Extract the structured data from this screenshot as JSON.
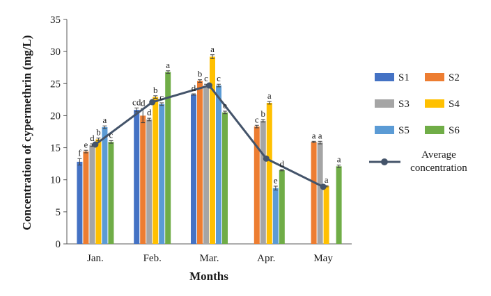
{
  "chart_data": {
    "type": "bar",
    "title": "",
    "xlabel": "Months",
    "ylabel": "Concentration of cypermethrin (mg/L)",
    "ylim": [
      0,
      35
    ],
    "yticks": [
      0,
      5,
      10,
      15,
      20,
      25,
      30,
      35
    ],
    "grid": false,
    "legend_position": "right",
    "categories": [
      "Jan.",
      "Feb.",
      "Mar.",
      "Apr.",
      "May"
    ],
    "series": [
      {
        "name": "S1",
        "color": "#4472c4",
        "values": [
          12.8,
          20.9,
          23.3,
          null,
          null
        ],
        "errors": [
          0.5,
          0.3,
          0.1,
          null,
          null
        ],
        "letters": [
          "f",
          "cd",
          "d",
          "",
          ""
        ]
      },
      {
        "name": "S2",
        "color": "#ed7d31",
        "values": [
          14.4,
          20.0,
          25.4,
          18.3,
          15.9
        ],
        "errors": [
          0.2,
          1.1,
          0.2,
          0.2,
          0.1
        ],
        "letters": [
          "e",
          "d",
          "b",
          "c",
          "a"
        ]
      },
      {
        "name": "S3",
        "color": "#a5a5a5",
        "values": [
          15.4,
          19.4,
          24.7,
          19.2,
          15.8
        ],
        "errors": [
          0.2,
          0.2,
          0.2,
          0.2,
          0.2
        ],
        "letters": [
          "d",
          "d",
          "c",
          "b",
          "a"
        ]
      },
      {
        "name": "S4",
        "color": "#ffc000",
        "values": [
          16.3,
          22.9,
          29.2,
          22.0,
          9.0
        ],
        "errors": [
          0.2,
          0.2,
          0.3,
          0.2,
          0.1
        ],
        "letters": [
          "b",
          "b",
          "a",
          "a",
          "a"
        ]
      },
      {
        "name": "S5",
        "color": "#5b9bd5",
        "values": [
          18.2,
          21.8,
          24.7,
          8.7,
          null
        ],
        "errors": [
          0.2,
          0.2,
          0.2,
          0.3,
          null
        ],
        "letters": [
          "a",
          "c",
          "c",
          "e",
          ""
        ]
      },
      {
        "name": "S6",
        "color": "#70ad47",
        "values": [
          15.9,
          26.8,
          20.5,
          11.5,
          12.1
        ],
        "errors": [
          0.2,
          0.2,
          0.2,
          0.1,
          0.2
        ],
        "letters": [
          "c",
          "a",
          "e",
          "d",
          "a"
        ]
      }
    ],
    "line": {
      "name": "Average concentration",
      "color": "#44546a",
      "values": [
        15.5,
        22.1,
        24.7,
        13.3,
        8.9
      ]
    }
  }
}
